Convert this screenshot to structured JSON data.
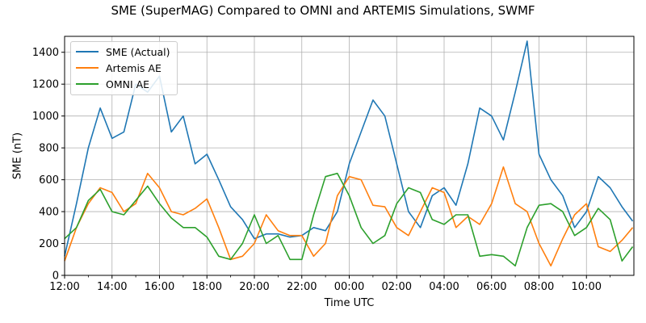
{
  "chart_data": {
    "type": "line",
    "title": "SME (SuperMAG) Compared to OMNI and ARTEMIS Simulations, SWMF",
    "xlabel": "Time UTC",
    "ylabel": "SME (nT)",
    "xlim": [
      0,
      24
    ],
    "ylim": [
      0,
      1500
    ],
    "x_tick_labels": [
      "12:00",
      "14:00",
      "16:00",
      "18:00",
      "20:00",
      "22:00",
      "00:00",
      "02:00",
      "04:00",
      "06:00",
      "08:00",
      "10:00"
    ],
    "y_ticks": [
      0,
      200,
      400,
      600,
      800,
      1000,
      1200,
      1400
    ],
    "grid": true,
    "legend_position": "top-left",
    "x": [
      0.0,
      0.5,
      1.0,
      1.5,
      2.0,
      2.5,
      3.0,
      3.5,
      4.0,
      4.5,
      5.0,
      5.5,
      6.0,
      6.5,
      7.0,
      7.5,
      8.0,
      8.5,
      9.0,
      9.5,
      10.0,
      10.5,
      11.0,
      11.5,
      12.0,
      12.5,
      13.0,
      13.5,
      14.0,
      14.5,
      15.0,
      15.5,
      16.0,
      16.5,
      17.0,
      17.5,
      18.0,
      18.5,
      19.0,
      19.5,
      20.0,
      20.5,
      21.0,
      21.5,
      22.0,
      22.5,
      23.0,
      23.5,
      23.95
    ],
    "series": [
      {
        "name": "SME (Actual)",
        "color": "#1f77b4",
        "values": [
          120,
          450,
          800,
          1050,
          860,
          900,
          1200,
          1150,
          1250,
          900,
          1000,
          700,
          760,
          600,
          430,
          350,
          230,
          260,
          260,
          240,
          250,
          300,
          280,
          400,
          700,
          900,
          1100,
          1000,
          700,
          400,
          300,
          500,
          550,
          440,
          700,
          1050,
          1000,
          850,
          1150,
          1470,
          760,
          600,
          500,
          300,
          400,
          620,
          550,
          430,
          340
        ]
      },
      {
        "name": "Artemis AE",
        "color": "#ff7f0e",
        "values": [
          90,
          300,
          450,
          550,
          520,
          400,
          450,
          640,
          550,
          400,
          380,
          420,
          480,
          300,
          100,
          120,
          200,
          380,
          280,
          250,
          250,
          120,
          200,
          500,
          620,
          600,
          440,
          430,
          300,
          250,
          400,
          550,
          520,
          300,
          370,
          320,
          450,
          680,
          450,
          400,
          200,
          60,
          230,
          380,
          450,
          180,
          150,
          220,
          300
        ]
      },
      {
        "name": "OMNI AE",
        "color": "#2ca02c",
        "values": [
          230,
          300,
          470,
          540,
          400,
          380,
          470,
          560,
          450,
          360,
          300,
          300,
          240,
          120,
          100,
          200,
          380,
          200,
          250,
          100,
          100,
          380,
          620,
          640,
          500,
          300,
          200,
          250,
          450,
          550,
          520,
          350,
          320,
          380,
          380,
          120,
          130,
          120,
          60,
          300,
          440,
          450,
          400,
          250,
          300,
          420,
          350,
          90,
          180
        ]
      }
    ]
  }
}
